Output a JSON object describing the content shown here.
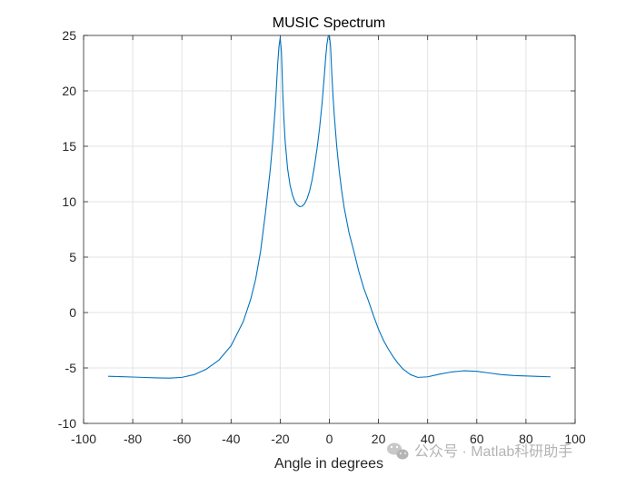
{
  "chart_data": {
    "type": "line",
    "title": "MUSIC Spectrum",
    "xlabel": "Angle in degrees",
    "ylabel": "",
    "xlim": [
      -100,
      100
    ],
    "ylim": [
      -10,
      25
    ],
    "xticks": [
      -100,
      -80,
      -60,
      -40,
      -20,
      0,
      20,
      40,
      60,
      80,
      100
    ],
    "yticks": [
      -10,
      -5,
      0,
      5,
      10,
      15,
      20,
      25
    ],
    "grid": true,
    "line_color": "#0072bd",
    "series": [
      {
        "x": [
          -90,
          -85,
          -80,
          -75,
          -70,
          -65,
          -60,
          -55,
          -50,
          -45,
          -40,
          -35,
          -32,
          -30,
          -28,
          -26,
          -24,
          -23,
          -22,
          -21.5,
          -21,
          -20.5,
          -20,
          -19.5,
          -19,
          -18.5,
          -18,
          -17,
          -16,
          -15,
          -14,
          -13,
          -12,
          -11,
          -10,
          -9,
          -8,
          -7,
          -6,
          -5,
          -4,
          -3,
          -2,
          -1.5,
          -1,
          -0.5,
          0,
          0.5,
          1,
          1.5,
          2,
          3,
          4,
          5,
          6,
          8,
          10,
          12,
          14,
          16,
          18,
          20,
          22,
          24,
          26,
          28,
          30,
          33,
          36,
          40,
          45,
          50,
          55,
          60,
          65,
          70,
          75,
          80,
          85,
          90
        ],
        "y": [
          -5.75,
          -5.78,
          -5.82,
          -5.86,
          -5.9,
          -5.92,
          -5.85,
          -5.6,
          -5.1,
          -4.3,
          -3.0,
          -0.8,
          1.2,
          3.0,
          5.5,
          9.0,
          13.0,
          15.5,
          18.5,
          20.5,
          22.5,
          24.0,
          24.8,
          23.5,
          20.0,
          17.5,
          15.5,
          13.0,
          11.5,
          10.6,
          10.0,
          9.7,
          9.55,
          9.6,
          9.85,
          10.3,
          11.0,
          12.0,
          13.3,
          14.8,
          16.6,
          18.8,
          21.5,
          23.0,
          24.2,
          24.9,
          25.0,
          24.0,
          21.5,
          19.5,
          17.8,
          15.0,
          12.8,
          11.0,
          9.5,
          7.2,
          5.5,
          3.7,
          2.2,
          1.0,
          -0.3,
          -1.5,
          -2.5,
          -3.3,
          -4.0,
          -4.6,
          -5.1,
          -5.6,
          -5.85,
          -5.8,
          -5.55,
          -5.35,
          -5.25,
          -5.3,
          -5.45,
          -5.6,
          -5.68,
          -5.72,
          -5.76,
          -5.8
        ]
      }
    ]
  },
  "watermark": {
    "text": "公众号 · Matlab科研助手",
    "icon": "wechat-icon"
  }
}
